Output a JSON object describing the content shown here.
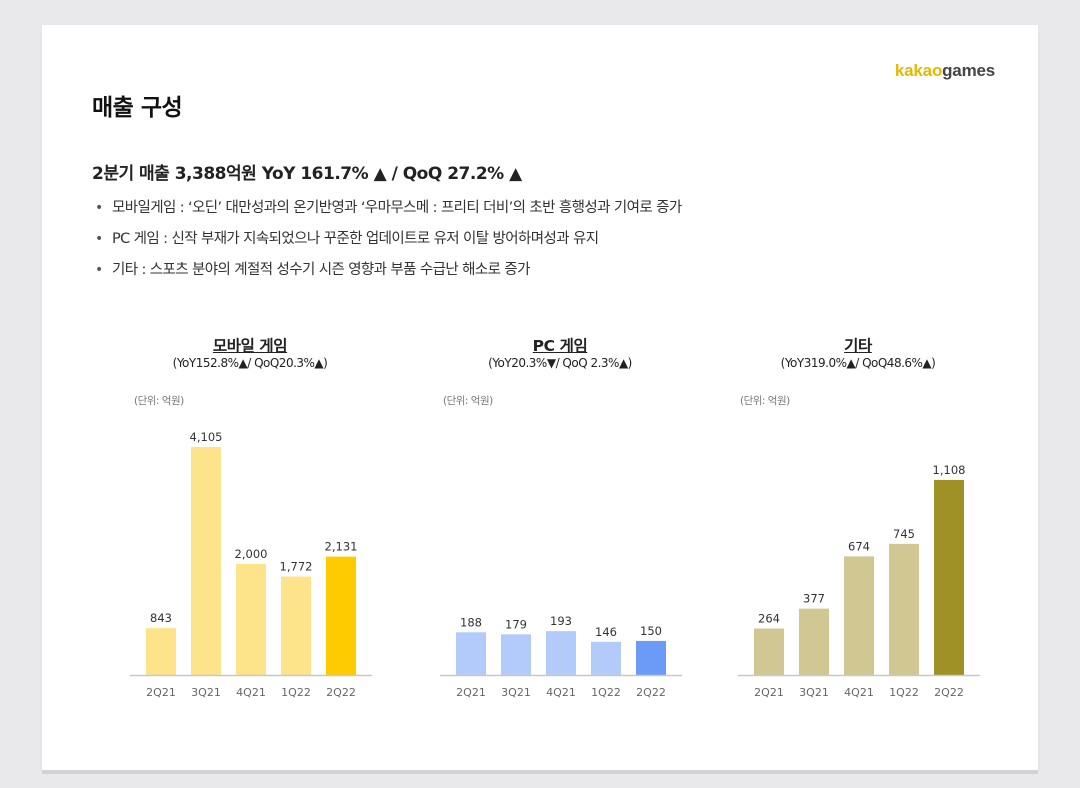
{
  "brand": {
    "logo_part1": "kakao",
    "logo_part2": "games"
  },
  "page_title": "매출 구성",
  "headline": "2분기 매출 3,388억원 YoY 161.7% ▲ / QoQ 27.2% ▲",
  "bullets": [
    {
      "text": "모바일게임 : ‘오딘’ 대만성과의 온기반영과 ‘우마무스메 : 프리티 더비’의 초반 흥행성과 기여로 증가"
    },
    {
      "text": "PC 게임 : 신작 부재가 지속되었으나 꾸준한 업데이트로 유저 이탈 방어하며성과 유지"
    },
    {
      "text": "기타 : 스포츠 분야의 계절적 성수기 시즌 영향과 부품 수급난 해소로 증가"
    }
  ],
  "bullet_glyph": "•",
  "charts": {
    "mobile": {
      "title": "모바일 게임",
      "subtitle": "(YoY152.8%▲/ QoQ20.3%▲)",
      "unit": "(단위: 억원)"
    },
    "pc": {
      "title": "PC 게임",
      "subtitle": "(YoY20.3%▼/ QoQ 2.3%▲)",
      "unit": "(단위: 억원)"
    },
    "other": {
      "title": "기타",
      "subtitle": "(YoY319.0%▲/ QoQ48.6%▲)",
      "unit": "(단위: 억원)"
    }
  },
  "chart_data": [
    {
      "type": "bar",
      "title": "모바일 게임",
      "subtitle": "(YoY152.8%▲/ QoQ20.3%▲)",
      "unit": "(단위: 억원)",
      "categories": [
        "2Q21",
        "3Q21",
        "4Q21",
        "1Q22",
        "2Q22"
      ],
      "values": [
        843,
        4105,
        2000,
        1772,
        2131
      ],
      "value_labels": [
        "843",
        "4,105",
        "2,000",
        "1,772",
        "2,131"
      ],
      "colors": [
        "#fde38a",
        "#fde38a",
        "#fde38a",
        "#fde38a",
        "#fecb00"
      ],
      "ylim": [
        0,
        4500
      ],
      "grid": false
    },
    {
      "type": "bar",
      "title": "PC 게임",
      "subtitle": "(YoY20.3%▼/ QoQ 2.3%▲)",
      "unit": "(단위: 억원)",
      "categories": [
        "2Q21",
        "3Q21",
        "4Q21",
        "1Q22",
        "2Q22"
      ],
      "values": [
        188,
        179,
        193,
        146,
        150
      ],
      "value_labels": [
        "188",
        "179",
        "193",
        "146",
        "150"
      ],
      "colors": [
        "#b3cbfa",
        "#b3cbfa",
        "#b3cbfa",
        "#b3cbfa",
        "#6b9bf7"
      ],
      "ylim": [
        0,
        1100
      ],
      "grid": false
    },
    {
      "type": "bar",
      "title": "기타",
      "subtitle": "(YoY319.0%▲/ QoQ48.6%▲)",
      "unit": "(단위: 억원)",
      "categories": [
        "2Q21",
        "3Q21",
        "4Q21",
        "1Q22",
        "2Q22"
      ],
      "values": [
        264,
        377,
        674,
        745,
        1108
      ],
      "value_labels": [
        "264",
        "377",
        "674",
        "745",
        "1,108"
      ],
      "colors": [
        "#d1c792",
        "#d1c792",
        "#d1c792",
        "#d1c792",
        "#a09126"
      ],
      "ylim": [
        0,
        1420
      ],
      "grid": false
    }
  ]
}
